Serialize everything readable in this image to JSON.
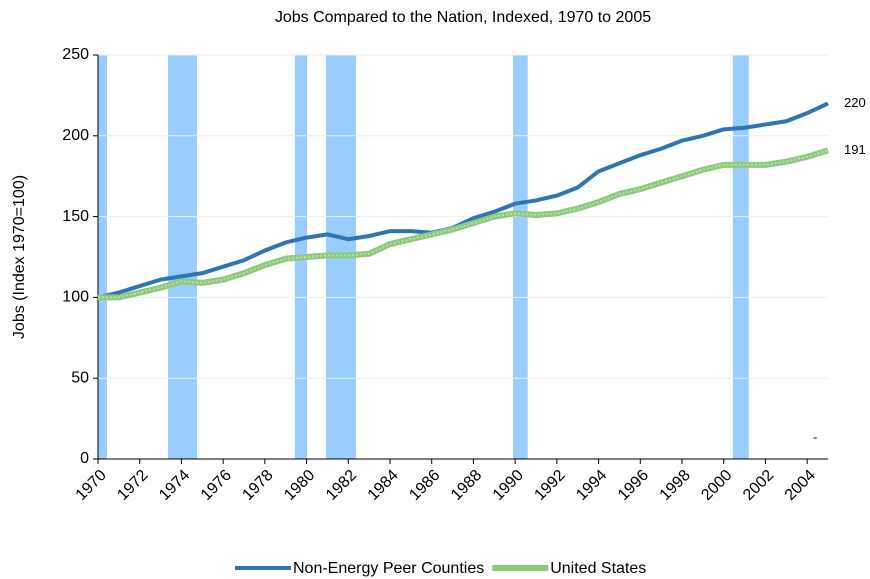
{
  "chart_data": {
    "type": "line",
    "title": "Jobs Compared to the Nation, Indexed, 1970 to 2005",
    "ylabel": "Jobs (Index 1970=100)",
    "x": [
      1970,
      1971,
      1972,
      1973,
      1974,
      1975,
      1976,
      1977,
      1978,
      1979,
      1980,
      1981,
      1982,
      1983,
      1984,
      1985,
      1986,
      1987,
      1988,
      1989,
      1990,
      1991,
      1992,
      1993,
      1994,
      1995,
      1996,
      1997,
      1998,
      1999,
      2000,
      2001,
      2002,
      2003,
      2004,
      2005
    ],
    "series": [
      {
        "name": "Non-Energy Peer Counties",
        "color": "#2e75b6",
        "values": [
          100,
          103,
          107,
          111,
          113,
          115,
          119,
          123,
          129,
          134,
          137,
          139,
          136,
          138,
          141,
          141,
          140,
          143,
          149,
          153,
          158,
          160,
          163,
          168,
          178,
          183,
          188,
          192,
          197,
          200,
          204,
          205,
          207,
          209,
          214,
          220
        ]
      },
      {
        "name": "United States",
        "color": "#8cc97c",
        "values": [
          100,
          100,
          103,
          106,
          110,
          109,
          111,
          115,
          120,
          124,
          125,
          126,
          126,
          127,
          133,
          136,
          139,
          142,
          146,
          150,
          152,
          151,
          152,
          155,
          159,
          164,
          167,
          171,
          175,
          179,
          182,
          182,
          182,
          184,
          187,
          191
        ]
      }
    ],
    "shaded_periods": [
      [
        1970,
        1970.43
      ],
      [
        1973.36,
        1974.75
      ],
      [
        1979.44,
        1980.02
      ],
      [
        1980.93,
        1982.37
      ],
      [
        1989.9,
        1990.6
      ],
      [
        2000.44,
        2001.2
      ]
    ],
    "shade_color": "#99ccff",
    "annotation": "-",
    "xlim": [
      1970,
      2005
    ],
    "xticks": [
      1970,
      1972,
      1974,
      1976,
      1978,
      1980,
      1982,
      1984,
      1986,
      1988,
      1990,
      1992,
      1994,
      1996,
      1998,
      2000,
      2002,
      2004
    ],
    "ylim": [
      0,
      250
    ],
    "yticks": [
      0,
      50,
      100,
      150,
      200,
      250
    ],
    "grid": true,
    "legend": "bottom"
  }
}
